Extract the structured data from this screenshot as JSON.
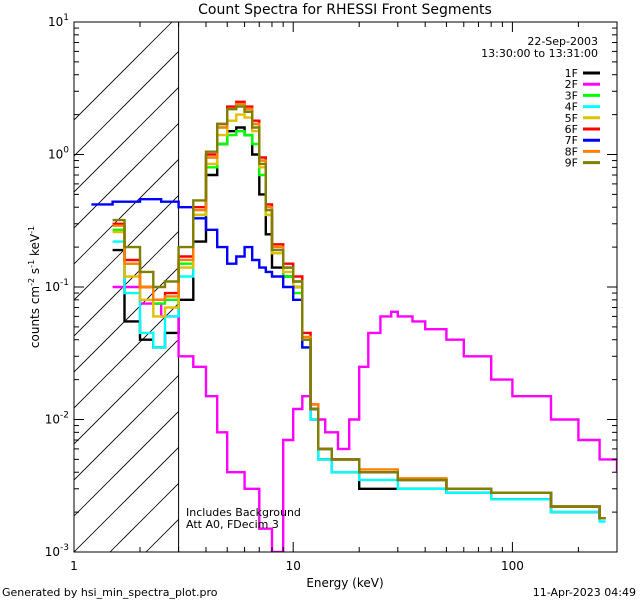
{
  "chart_data": {
    "type": "line",
    "title": "Count Spectra for RHESSI Front Segments",
    "xlabel": "Energy (keV)",
    "ylabel": {
      "base": "counts cm",
      "exp1": "-2",
      "mid": " s",
      "exp2": "-1",
      "unit": " keV",
      "exp3": "-1"
    },
    "xscale": "log",
    "yscale": "log",
    "xlim": [
      1,
      300
    ],
    "ylim": [
      0.001,
      10
    ],
    "x_ticks": [
      {
        "value": 1,
        "label": "1"
      },
      {
        "value": 10,
        "label": "10"
      },
      {
        "value": 100,
        "label": "100"
      }
    ],
    "y_ticks": [
      {
        "value": 0.001,
        "base": "10",
        "exp": "-3"
      },
      {
        "value": 0.01,
        "base": "10",
        "exp": "-2"
      },
      {
        "value": 0.1,
        "base": "10",
        "exp": "-1"
      },
      {
        "value": 1,
        "base": "10",
        "exp": "0"
      },
      {
        "value": 10,
        "base": "10",
        "exp": "1"
      }
    ],
    "hatched_region": [
      1,
      3
    ],
    "date": "22-Sep-2003",
    "time_range": "13:30:00 to 13:31:00",
    "annotations": [
      "Includes Background",
      "Att A0, FDecim 3"
    ],
    "legend_position": "top-right",
    "series": [
      {
        "name": "1F",
        "color": "#000000",
        "energy": [
          1.5,
          1.7,
          2,
          2.3,
          2.6,
          3,
          3.5,
          4,
          4.5,
          5,
          5.5,
          6,
          6.5,
          7,
          7.5,
          8,
          9,
          10,
          11,
          12,
          13,
          15,
          20,
          30,
          50,
          80,
          150,
          250
        ],
        "counts": [
          0.19,
          0.055,
          0.04,
          0.035,
          0.045,
          0.08,
          0.22,
          0.7,
          1.2,
          1.5,
          1.6,
          1.4,
          1.0,
          0.5,
          0.25,
          0.14,
          0.12,
          0.1,
          0.04,
          0.012,
          0.005,
          0.004,
          0.003,
          0.003,
          0.0028,
          0.0025,
          0.002,
          0.0018
        ]
      },
      {
        "name": "2F",
        "color": "#ff00ff",
        "energy": [
          1.5,
          2,
          2.5,
          3,
          3.5,
          4,
          4.5,
          5,
          6,
          7,
          8,
          9,
          10,
          11,
          12,
          14,
          16,
          18,
          20,
          22,
          25,
          28,
          30,
          35,
          40,
          50,
          60,
          80,
          100,
          150,
          200,
          250,
          300
        ],
        "counts": [
          0.1,
          0.075,
          0.06,
          0.03,
          0.025,
          0.015,
          0.008,
          0.004,
          0.003,
          0.0015,
          0.001,
          0.007,
          0.012,
          0.015,
          0.01,
          0.008,
          0.006,
          0.01,
          0.025,
          0.045,
          0.06,
          0.065,
          0.06,
          0.055,
          0.048,
          0.04,
          0.03,
          0.02,
          0.015,
          0.01,
          0.007,
          0.005,
          0.004
        ]
      },
      {
        "name": "3F",
        "color": "#00ff00",
        "energy": [
          1.5,
          1.7,
          2,
          2.3,
          2.6,
          3,
          3.5,
          4,
          4.5,
          5,
          5.5,
          6,
          6.5,
          7,
          7.5,
          8,
          9,
          10,
          11,
          12,
          13,
          15,
          20,
          30,
          50,
          80,
          150,
          250
        ],
        "counts": [
          0.27,
          0.15,
          0.1,
          0.075,
          0.08,
          0.15,
          0.35,
          0.8,
          1.2,
          1.4,
          1.5,
          1.4,
          1.2,
          0.7,
          0.35,
          0.18,
          0.12,
          0.09,
          0.035,
          0.012,
          0.006,
          0.005,
          0.004,
          0.0035,
          0.003,
          0.0028,
          0.0022,
          0.0018
        ]
      },
      {
        "name": "4F",
        "color": "#00ffff",
        "energy": [
          1.5,
          1.7,
          2,
          2.3,
          2.6,
          3,
          3.5,
          4,
          4.5,
          5,
          5.5,
          6,
          6.5,
          7,
          7.5,
          8,
          9,
          10,
          11,
          12,
          13,
          15,
          20,
          30,
          50,
          80,
          150,
          250
        ],
        "counts": [
          0.22,
          0.09,
          0.045,
          0.035,
          0.06,
          0.12,
          0.35,
          0.95,
          1.6,
          2.2,
          2.4,
          2.2,
          1.7,
          0.9,
          0.4,
          0.2,
          0.14,
          0.11,
          0.04,
          0.01,
          0.005,
          0.004,
          0.0035,
          0.003,
          0.0028,
          0.0025,
          0.002,
          0.0017
        ]
      },
      {
        "name": "5F",
        "color": "#e0c000",
        "energy": [
          1.5,
          1.7,
          2,
          2.3,
          2.6,
          3,
          3.5,
          4,
          4.5,
          5,
          5.5,
          6,
          6.5,
          7,
          7.5,
          8,
          9,
          10,
          11,
          12,
          13,
          15,
          20,
          30,
          50,
          80,
          150,
          250
        ],
        "counts": [
          0.26,
          0.12,
          0.08,
          0.06,
          0.07,
          0.14,
          0.35,
          0.85,
          1.4,
          1.8,
          2.0,
          1.9,
          1.5,
          0.8,
          0.35,
          0.18,
          0.13,
          0.1,
          0.04,
          0.012,
          0.006,
          0.005,
          0.004,
          0.0035,
          0.003,
          0.0028,
          0.0022,
          0.0018
        ]
      },
      {
        "name": "6F",
        "color": "#ff0000",
        "energy": [
          1.5,
          1.7,
          2,
          2.3,
          2.6,
          3,
          3.5,
          4,
          4.5,
          5,
          5.5,
          6,
          6.5,
          7,
          7.5,
          8,
          9,
          10,
          11,
          12,
          13,
          15,
          20,
          30,
          50,
          80,
          150,
          250
        ],
        "counts": [
          0.3,
          0.16,
          0.1,
          0.08,
          0.09,
          0.17,
          0.4,
          1.0,
          1.7,
          2.3,
          2.5,
          2.3,
          1.8,
          0.95,
          0.42,
          0.21,
          0.15,
          0.12,
          0.045,
          0.013,
          0.006,
          0.005,
          0.004,
          0.0035,
          0.003,
          0.0028,
          0.0022,
          0.0018
        ]
      },
      {
        "name": "7F",
        "color": "#0000ff",
        "energy": [
          1.2,
          1.5,
          2,
          2.5,
          3,
          3.5,
          4,
          4.5,
          5,
          5.5,
          6,
          6.5,
          7,
          7.5,
          8,
          9,
          10,
          11,
          12,
          13,
          15,
          20,
          30,
          50,
          80,
          150,
          250
        ],
        "counts": [
          0.42,
          0.44,
          0.46,
          0.44,
          0.4,
          0.33,
          0.27,
          0.2,
          0.15,
          0.17,
          0.2,
          0.16,
          0.14,
          0.13,
          0.12,
          0.1,
          0.08,
          0.035,
          0.012,
          0.006,
          0.005,
          0.004,
          0.0035,
          0.003,
          0.0028,
          0.0022,
          0.0018
        ]
      },
      {
        "name": "8F",
        "color": "#ff8000",
        "energy": [
          1.5,
          1.7,
          2,
          2.3,
          2.6,
          3,
          3.5,
          4,
          4.5,
          5,
          5.5,
          6,
          6.5,
          7,
          7.5,
          8,
          9,
          10,
          11,
          12,
          13,
          15,
          20,
          30,
          50,
          80,
          150,
          250
        ],
        "counts": [
          0.29,
          0.15,
          0.1,
          0.08,
          0.085,
          0.16,
          0.38,
          0.95,
          1.6,
          2.2,
          2.4,
          2.2,
          1.7,
          0.9,
          0.4,
          0.2,
          0.14,
          0.11,
          0.042,
          0.013,
          0.006,
          0.005,
          0.0042,
          0.0036,
          0.003,
          0.0028,
          0.0022,
          0.0018
        ]
      },
      {
        "name": "9F",
        "color": "#808000",
        "energy": [
          1.5,
          1.7,
          2,
          2.3,
          2.6,
          3,
          3.5,
          4,
          4.5,
          5,
          5.5,
          6,
          6.5,
          7,
          7.5,
          8,
          9,
          10,
          11,
          12,
          13,
          15,
          20,
          30,
          50,
          80,
          150,
          250
        ],
        "counts": [
          0.32,
          0.2,
          0.13,
          0.1,
          0.11,
          0.2,
          0.45,
          1.05,
          1.7,
          2.2,
          2.3,
          2.1,
          1.6,
          0.85,
          0.38,
          0.19,
          0.14,
          0.11,
          0.04,
          0.012,
          0.006,
          0.005,
          0.004,
          0.0035,
          0.003,
          0.0028,
          0.0022,
          0.0018
        ]
      }
    ]
  },
  "footer": {
    "left": "Generated by hsi_min_spectra_plot.pro",
    "right": "11-Apr-2023 04:49"
  }
}
